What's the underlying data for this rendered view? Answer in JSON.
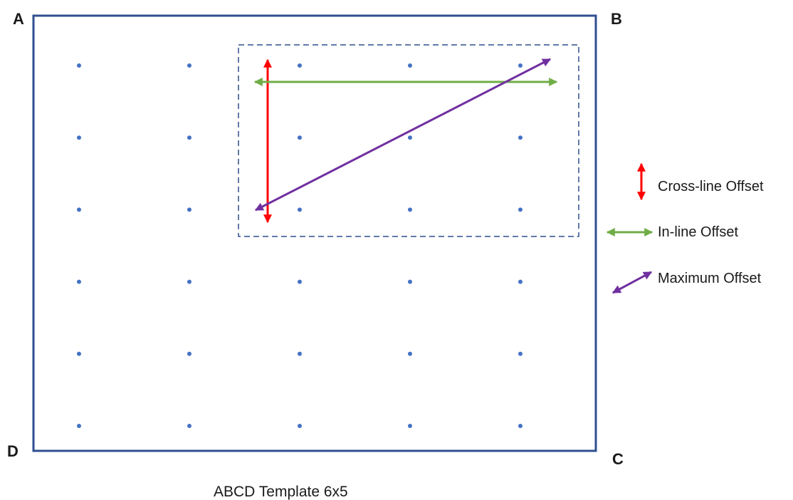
{
  "corners": {
    "a": "A",
    "b": "B",
    "c": "C",
    "d": "D"
  },
  "grid": {
    "columns": 5,
    "rows": 6,
    "dot_color": "#4472c4"
  },
  "colors": {
    "frame": "#2f4f8f",
    "selection_box": "#2f4f8f",
    "cross_line": "#ff0000",
    "in_line": "#70ad47",
    "maximum": "#7030a0"
  },
  "legend": {
    "cross_line": "Cross-line Offset",
    "in_line": "In-line Offset",
    "maximum": "Maximum Offset"
  },
  "caption": "ABCD Template 6x5"
}
